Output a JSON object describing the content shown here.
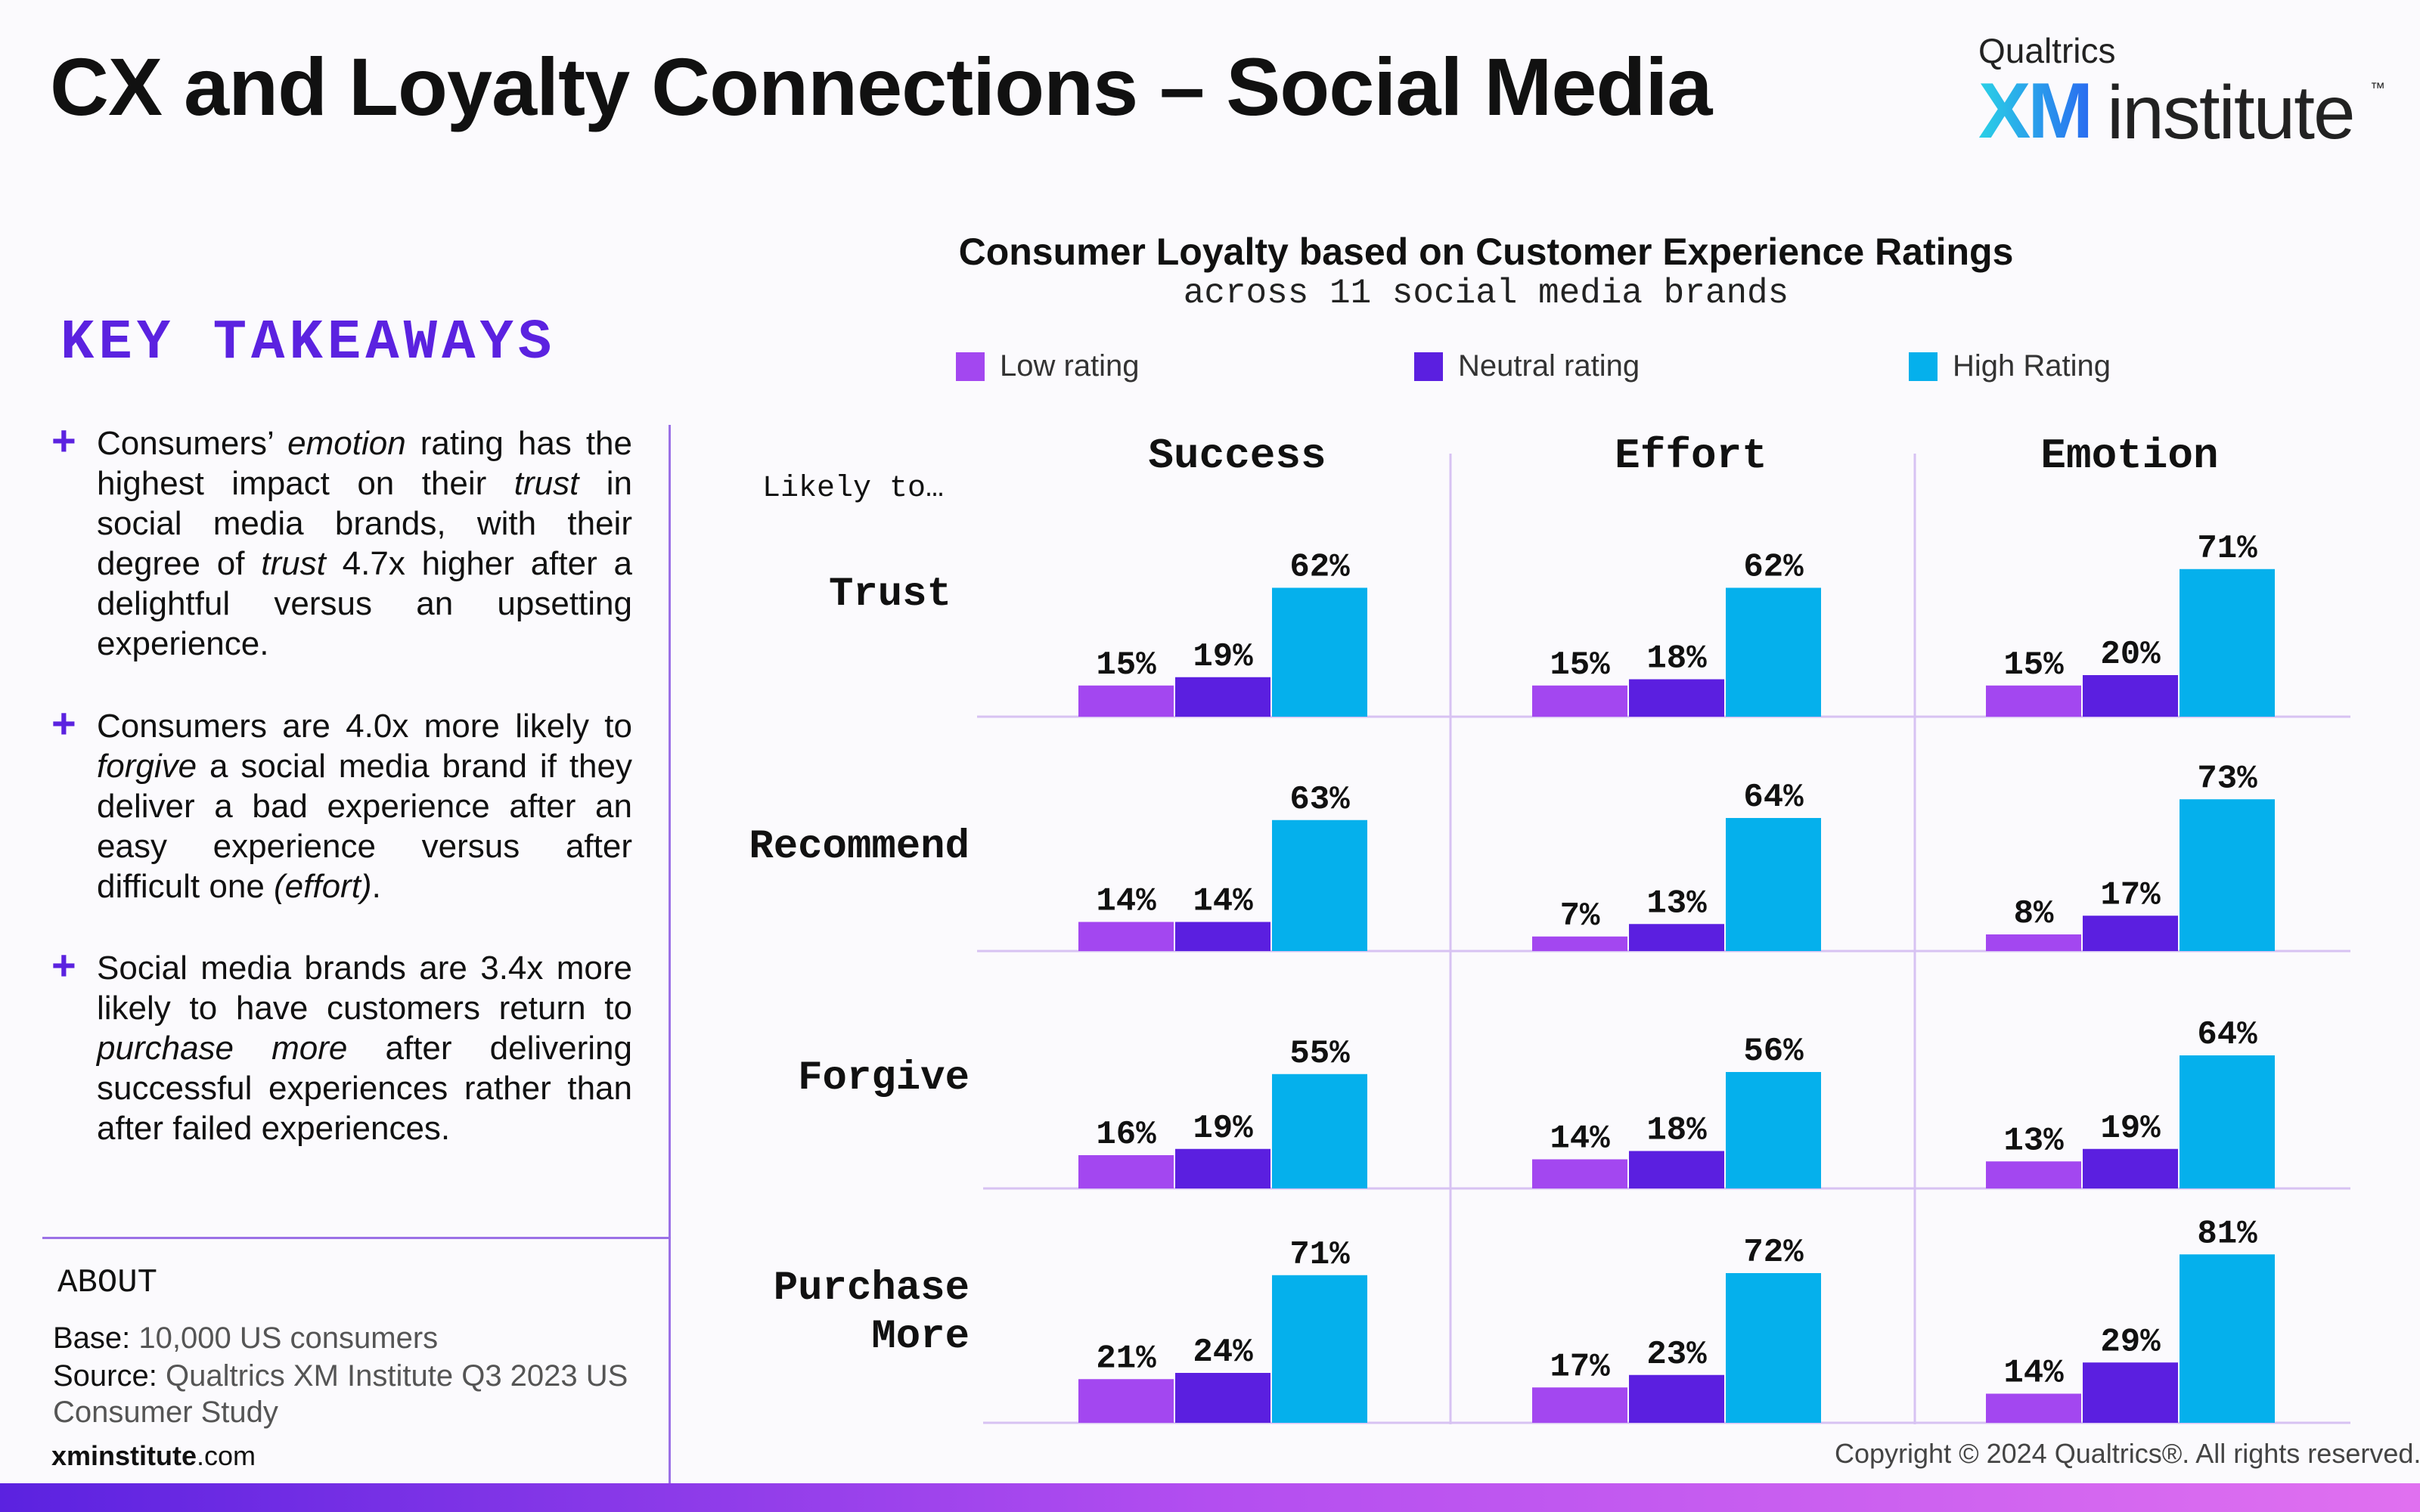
{
  "header": {
    "title": "CX and Loyalty Connections – Social Media",
    "brand": {
      "top": "Qualtrics",
      "xm": "XM",
      "name": "institute",
      "tm": "™"
    }
  },
  "key_takeaways": {
    "title": "KEY TAKEAWAYS",
    "items": [
      {
        "html": "Consumers’ <i>emotion</i> rating has the highest impact on their <i>trust</i> in social media brands, with their degree of <i>trust</i> 4.7x higher after a delightful versus an upsetting experience."
      },
      {
        "html": "Consumers are 4.0x more likely to <i>forgive</i> a social media brand if they deliver a bad experience after an easy experience versus after difficult one <i>(effort)</i>."
      },
      {
        "html": "Social media brands are 3.4x more likely to have customers return to <i>purchase more</i> after delivering successful experiences rather than after failed experiences."
      }
    ]
  },
  "about": {
    "title": "ABOUT",
    "base_label": "Base:",
    "base_value": " 10,000 US consumers",
    "source_label": "Source:",
    "source_value": " Qualtrics XM Institute Q3 2023 US Consumer Study"
  },
  "footer": {
    "site_bold": "xminstitute",
    "site_rest": ".com",
    "copyright": "Copyright © 2024 Qualtrics®. All rights reserved."
  },
  "colors": {
    "low": "#a347f0",
    "neutral": "#5b1fe0",
    "high": "#05b0ec",
    "accent": "#5b22e0"
  },
  "chart_data": {
    "type": "bar",
    "title": "Consumer Loyalty based on Customer Experience Ratings",
    "subtitle": "across 11 social media brands",
    "row_header": "Likely to…",
    "columns": [
      "Success",
      "Effort",
      "Emotion"
    ],
    "rows": [
      "Trust",
      "Recommend",
      "Forgive",
      "Purchase More"
    ],
    "series_names": [
      "Low rating",
      "Neutral rating",
      "High Rating"
    ],
    "ylim": [
      0,
      100
    ],
    "values": [
      [
        [
          15,
          19,
          62
        ],
        [
          15,
          18,
          62
        ],
        [
          15,
          20,
          71
        ]
      ],
      [
        [
          14,
          14,
          63
        ],
        [
          7,
          13,
          64
        ],
        [
          8,
          17,
          73
        ]
      ],
      [
        [
          16,
          19,
          55
        ],
        [
          14,
          18,
          56
        ],
        [
          13,
          19,
          64
        ]
      ],
      [
        [
          21,
          24,
          71
        ],
        [
          17,
          23,
          72
        ],
        [
          14,
          29,
          81
        ]
      ]
    ],
    "value_suffix": "%"
  }
}
